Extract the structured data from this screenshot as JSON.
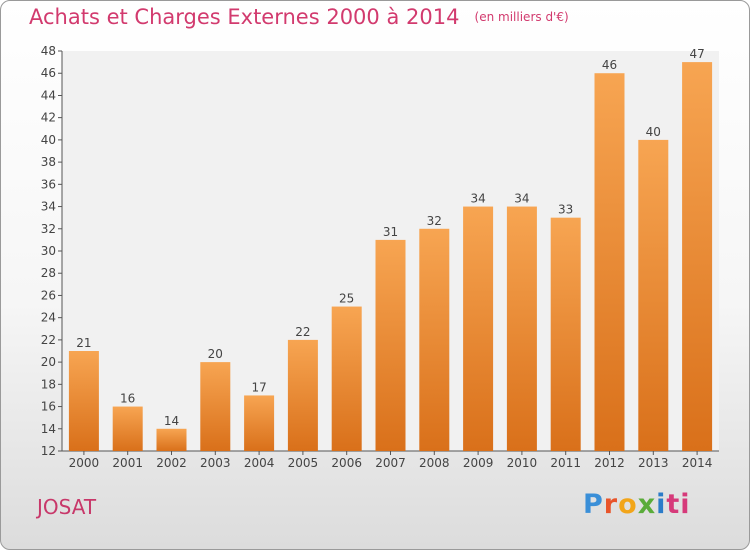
{
  "chart_data": {
    "type": "bar",
    "title": "Achats et Charges Externes 2000 à 2014",
    "unit": "(en milliers d'€)",
    "categories": [
      "2000",
      "2001",
      "2002",
      "2003",
      "2004",
      "2005",
      "2006",
      "2007",
      "2008",
      "2009",
      "2010",
      "2011",
      "2012",
      "2013",
      "2014"
    ],
    "values": [
      21,
      16,
      14,
      20,
      17,
      22,
      25,
      31,
      32,
      34,
      34,
      33,
      46,
      40,
      47
    ],
    "ylim": [
      12,
      48
    ],
    "yticks": [
      12,
      14,
      16,
      18,
      20,
      22,
      24,
      26,
      28,
      30,
      32,
      34,
      36,
      38,
      40,
      42,
      44,
      46,
      48
    ],
    "grid": false,
    "colors": {
      "bar_light": "#f7a552",
      "bar_dark": "#d9701a",
      "title": "#d23a6e"
    }
  },
  "commune": "JOSAT",
  "logo": {
    "text": "Proxiti",
    "letters": [
      "P",
      "r",
      "o",
      "x",
      "i",
      "ti"
    ]
  }
}
